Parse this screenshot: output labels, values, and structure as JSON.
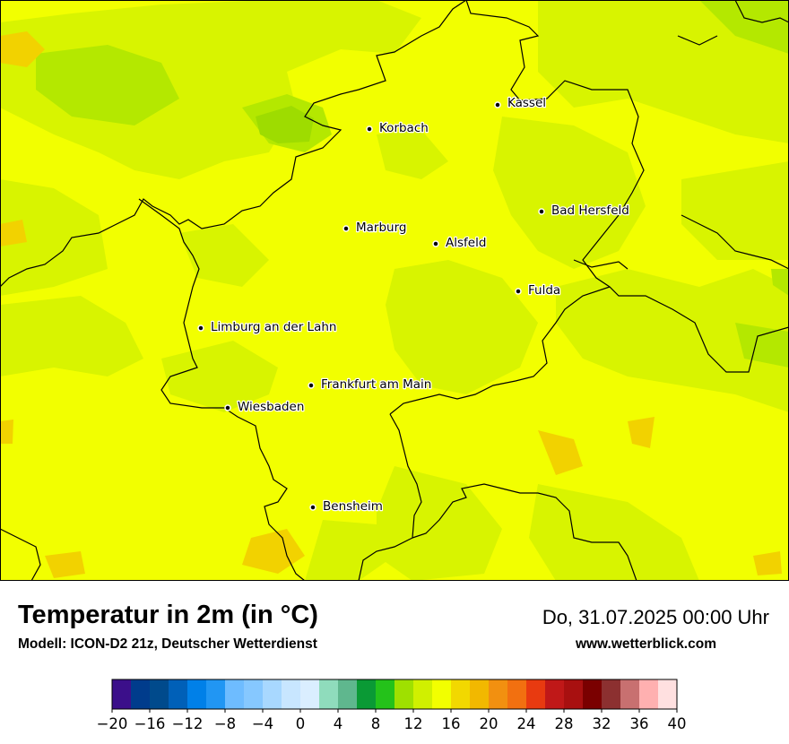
{
  "title": "Temperatur in 2m (in °C)",
  "model": "Modell: ICON-D2 21z, Deutscher Wetterdienst",
  "datetime": "Do, 31.07.2025 00:00 Uhr",
  "website": "www.wetterblick.com",
  "cities": [
    {
      "name": "Kassel"
    },
    {
      "name": "Korbach"
    },
    {
      "name": "Bad Hersfeld"
    },
    {
      "name": "Marburg"
    },
    {
      "name": "Alsfeld"
    },
    {
      "name": "Fulda"
    },
    {
      "name": "Limburg an der Lahn"
    },
    {
      "name": "Frankfurt am Main"
    },
    {
      "name": "Wiesbaden"
    },
    {
      "name": "Bensheim"
    }
  ],
  "colors": {
    "map_base": "#f2ff00",
    "map_green_light": "#d6f200",
    "map_green": "#a8e000",
    "map_orange": "#f2d200"
  },
  "legend": {
    "min": -20,
    "max": 40,
    "step": 2,
    "tick_labels": [
      "−20",
      "−16",
      "−12",
      "−8",
      "−4",
      "0",
      "4",
      "8",
      "12",
      "16",
      "20",
      "24",
      "28",
      "32",
      "36",
      "40"
    ],
    "colors": [
      "#3b0f8a",
      "#003c8c",
      "#004a8c",
      "#0060b8",
      "#0080e8",
      "#2196f3",
      "#6ebcff",
      "#86c8ff",
      "#a8d8ff",
      "#c8e6ff",
      "#daeeff",
      "#8fdcbc",
      "#5fb78e",
      "#0a9a35",
      "#24c21a",
      "#9fe000",
      "#d0f000",
      "#f2ff00",
      "#f2d800",
      "#f2b800",
      "#f29010",
      "#f27010",
      "#e83a10",
      "#c01818",
      "#a81010",
      "#7a0000",
      "#8c3030",
      "#c87070",
      "#ffb0b0",
      "#ffe0e0"
    ]
  }
}
